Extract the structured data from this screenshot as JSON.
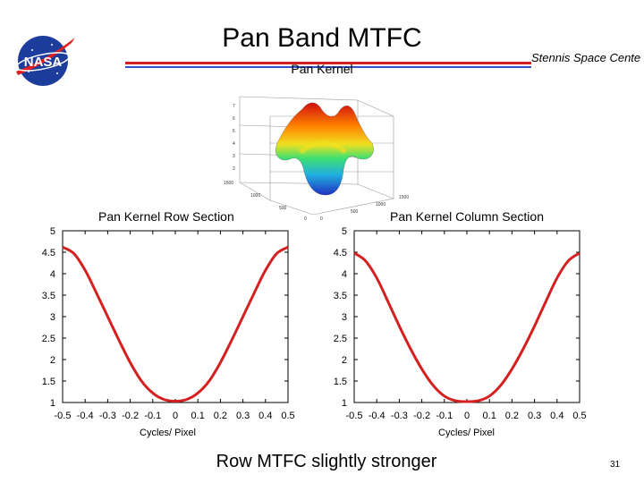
{
  "slide": {
    "title": "Pan Band MTFC",
    "center_name": "Stennis Space Cente",
    "logo_text": "NASA",
    "caption": "Row MTFC slightly stronger",
    "page_number": "31"
  },
  "surface_plot": {
    "title": "Pan Kernel",
    "z_ticks": [
      "7",
      "6",
      "5",
      "4",
      "3",
      "2"
    ],
    "axis_a_ticks": [
      "1500",
      "1000",
      "500",
      "0"
    ],
    "axis_b_ticks": [
      "0",
      "500",
      "1000",
      "1500"
    ]
  },
  "colors": {
    "curve": "#d42020",
    "rule_red": "#d42020",
    "rule_blue": "#2f55c8"
  },
  "chart_data": [
    {
      "type": "line",
      "title": "Pan Kernel Row Section",
      "xlabel": "Cycles/ Pixel",
      "ylabel": "",
      "xlim": [
        -0.5,
        0.5
      ],
      "ylim": [
        1,
        5
      ],
      "x_ticks": [
        "-0.5",
        "-0.4",
        "-0.3",
        "-0.2",
        "-0.1",
        "0",
        "0.1",
        "0.2",
        "0.3",
        "0.4",
        "0.5"
      ],
      "y_ticks": [
        "5",
        "4.5",
        "4",
        "3.5",
        "3",
        "2.5",
        "2",
        "1.5",
        "1"
      ],
      "grid": false,
      "x": [
        -0.5,
        -0.45,
        -0.4,
        -0.35,
        -0.3,
        -0.25,
        -0.2,
        -0.15,
        -0.1,
        -0.05,
        0,
        0.05,
        0.1,
        0.15,
        0.2,
        0.25,
        0.3,
        0.35,
        0.4,
        0.45,
        0.5
      ],
      "y": [
        4.62,
        4.47,
        4.08,
        3.55,
        3.0,
        2.45,
        1.93,
        1.5,
        1.22,
        1.07,
        1.03,
        1.07,
        1.22,
        1.5,
        1.93,
        2.45,
        3.0,
        3.55,
        4.08,
        4.47,
        4.62
      ]
    },
    {
      "type": "line",
      "title": "Pan Kernel Column Section",
      "xlabel": "Cycles/ Pixel",
      "ylabel": "",
      "xlim": [
        -0.5,
        0.5
      ],
      "ylim": [
        1,
        5
      ],
      "x_ticks": [
        "-0.5",
        "-0.4",
        "-0.3",
        "-0.2",
        "-0.1",
        "0",
        "0.1",
        "0.2",
        "0.3",
        "0.4",
        "0.5"
      ],
      "y_ticks": [
        "5",
        "4.5",
        "4",
        "3.5",
        "3",
        "2.5",
        "2",
        "1.5",
        "1"
      ],
      "grid": false,
      "x": [
        -0.5,
        -0.45,
        -0.4,
        -0.35,
        -0.3,
        -0.25,
        -0.2,
        -0.15,
        -0.1,
        -0.05,
        0,
        0.05,
        0.1,
        0.15,
        0.2,
        0.25,
        0.3,
        0.35,
        0.4,
        0.45,
        0.5
      ],
      "y": [
        4.48,
        4.3,
        3.9,
        3.35,
        2.78,
        2.25,
        1.78,
        1.4,
        1.15,
        1.04,
        1.02,
        1.04,
        1.15,
        1.4,
        1.78,
        2.25,
        2.78,
        3.35,
        3.9,
        4.3,
        4.48
      ]
    }
  ]
}
